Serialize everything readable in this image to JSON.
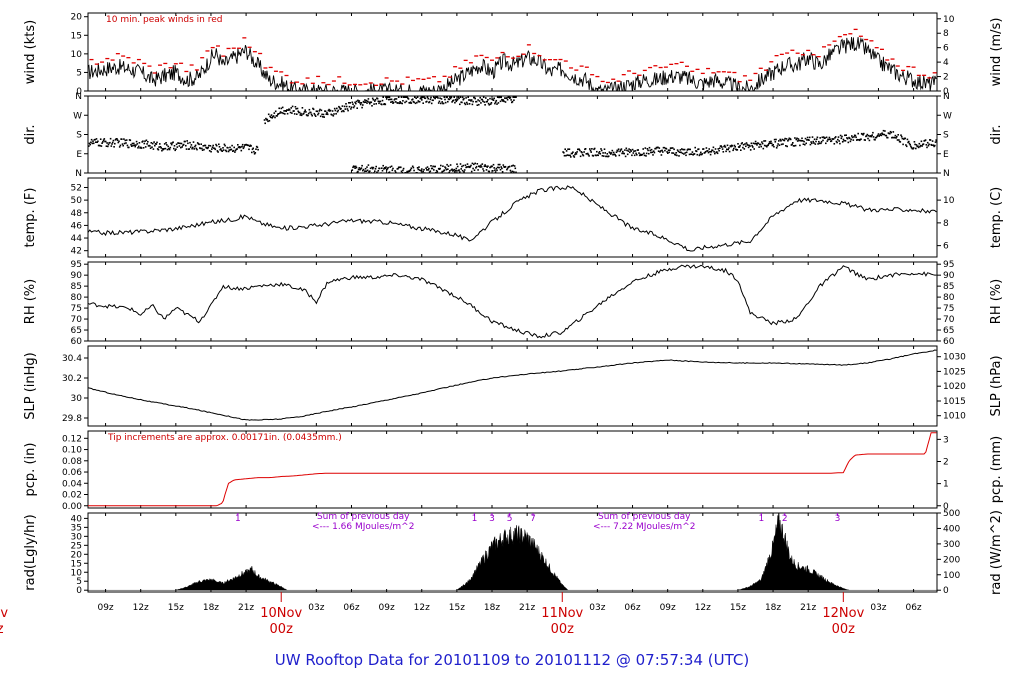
{
  "title": "UW Rooftop Data for 20101109  to  20101112 @ 07:57:34  (UTC)",
  "colors": {
    "trace": "#000000",
    "peak": "#e00000",
    "pcp": "#dd0000",
    "annot_red": "#cc0000",
    "annot_purple": "#9900cc",
    "title": "#1f1fcc"
  },
  "time_axis": {
    "start_hour": 7.5,
    "end_hour": 80,
    "ticks": [
      {
        "h": 9,
        "label": "09z"
      },
      {
        "h": 12,
        "label": "12z"
      },
      {
        "h": 15,
        "label": "15z"
      },
      {
        "h": 18,
        "label": "18z"
      },
      {
        "h": 21,
        "label": "21z"
      },
      {
        "h": 27,
        "label": "03z"
      },
      {
        "h": 30,
        "label": "06z"
      },
      {
        "h": 33,
        "label": "09z"
      },
      {
        "h": 36,
        "label": "12z"
      },
      {
        "h": 39,
        "label": "15z"
      },
      {
        "h": 42,
        "label": "18z"
      },
      {
        "h": 45,
        "label": "21z"
      },
      {
        "h": 51,
        "label": "03z"
      },
      {
        "h": 54,
        "label": "06z"
      },
      {
        "h": 57,
        "label": "09z"
      },
      {
        "h": 60,
        "label": "12z"
      },
      {
        "h": 63,
        "label": "15z"
      },
      {
        "h": 66,
        "label": "18z"
      },
      {
        "h": 69,
        "label": "21z"
      },
      {
        "h": 75,
        "label": "03z"
      },
      {
        "h": 78,
        "label": "06z"
      }
    ],
    "day_marks": [
      {
        "h": 0,
        "day": "ov",
        "z": "z"
      },
      {
        "h": 24,
        "day": "10Nov",
        "z": "00z"
      },
      {
        "h": 48,
        "day": "11Nov",
        "z": "00z"
      },
      {
        "h": 72,
        "day": "12Nov",
        "z": "00z"
      }
    ]
  },
  "chart_data": [
    {
      "id": "wind",
      "type": "line",
      "ylabel": "wind (kts)",
      "ylabel_right": "wind (m/s)",
      "ylim": [
        0,
        21
      ],
      "yticks": [
        0,
        5,
        10,
        15,
        20
      ],
      "right_axis": {
        "scale": 0.5144,
        "ticks": [
          0,
          2,
          4,
          6,
          8,
          10
        ],
        "labels": [
          "0",
          "2",
          "4",
          "6",
          "8",
          "10"
        ]
      },
      "annotation": "10 min. peak winds in red",
      "series": [
        {
          "x": [
            7.5,
            9,
            10,
            11,
            12,
            13,
            14,
            15,
            16,
            17,
            18,
            18.5,
            19,
            20,
            21,
            22,
            23,
            24,
            25,
            26,
            28,
            30,
            32,
            34,
            36,
            37,
            38,
            39,
            40,
            41,
            42,
            43,
            44,
            45,
            46,
            47,
            48,
            49,
            50,
            51,
            52,
            53,
            54,
            55,
            56,
            57,
            58,
            59,
            60,
            61,
            62,
            63,
            64,
            65,
            66,
            67,
            68,
            69,
            70,
            71,
            72,
            73,
            74,
            75,
            76,
            77,
            78,
            79,
            80
          ],
          "y": [
            5,
            6,
            6.5,
            6,
            5,
            3,
            4,
            5,
            3,
            4,
            9,
            10,
            7,
            9,
            11,
            7,
            3,
            2,
            0.5,
            0,
            0,
            0,
            0,
            0,
            0,
            0,
            1,
            3,
            5,
            7,
            5,
            8,
            7,
            9,
            8,
            5,
            6,
            4,
            3,
            0,
            0,
            1,
            2,
            3,
            3,
            4,
            4,
            3,
            2,
            3,
            2,
            1,
            0.5,
            3,
            5,
            7,
            7,
            9,
            7,
            10,
            12,
            13,
            11,
            8,
            6,
            4,
            3,
            2,
            2
          ]
        }
      ],
      "peak_note": "red marks above trace = 10-min peak winds"
    },
    {
      "id": "dir",
      "type": "scatter",
      "ylabel": "dir.",
      "ylabel_right": "dir.",
      "ylim": [
        0,
        360
      ],
      "yticks": [
        0,
        90,
        180,
        270,
        360
      ],
      "tick_labels": [
        "N",
        "E",
        "S",
        "W",
        "N"
      ],
      "series": [
        {
          "x": [
            7.5,
            10,
            12,
            14,
            16,
            18,
            20,
            21,
            22
          ],
          "y": [
            145,
            145,
            140,
            125,
            135,
            120,
            120,
            120,
            110
          ]
        },
        {
          "x": [
            22.5,
            23,
            24,
            26,
            28,
            30,
            32,
            35,
            38,
            41,
            44
          ],
          "y": [
            250,
            270,
            300,
            290,
            280,
            320,
            340,
            350,
            345,
            340,
            350
          ]
        },
        {
          "x": [
            30,
            33,
            36,
            40,
            44
          ],
          "y": [
            25,
            20,
            15,
            30,
            20
          ]
        },
        {
          "x": [
            48,
            50,
            52,
            54,
            56,
            58,
            60,
            62,
            64,
            66,
            68,
            70,
            72,
            74,
            76,
            78,
            80
          ],
          "y": [
            95,
            100,
            100,
            100,
            105,
            100,
            105,
            115,
            130,
            140,
            150,
            155,
            160,
            175,
            185,
            130,
            150
          ]
        }
      ]
    },
    {
      "id": "temp",
      "type": "line",
      "ylabel": "temp. (F)",
      "ylabel_right": "temp. (C)",
      "ylim": [
        41,
        53.5
      ],
      "yticks": [
        42,
        44,
        46,
        48,
        50,
        52
      ],
      "right_axis": {
        "ticks_in_left_units": [
          42.8,
          46.4,
          50.0
        ],
        "labels": [
          "6",
          "8",
          "10"
        ]
      },
      "series": [
        {
          "x": [
            7.5,
            9,
            12,
            15,
            18,
            20,
            21,
            22,
            23,
            24,
            27,
            30,
            33,
            36,
            39,
            40,
            42,
            44,
            46,
            48,
            49,
            50,
            52,
            54,
            56,
            58,
            59,
            60,
            62,
            64,
            66,
            68,
            70,
            72,
            74,
            76,
            78,
            80
          ],
          "y": [
            45,
            44.8,
            45,
            45.5,
            46.5,
            47,
            47.5,
            46.5,
            46,
            45.5,
            46,
            46.8,
            46.5,
            45.5,
            44.5,
            43.5,
            46.5,
            49.5,
            51.5,
            52,
            52,
            50.5,
            48,
            45.5,
            44.5,
            43,
            42,
            42.5,
            43,
            43.5,
            47.5,
            50,
            50,
            49.5,
            48.5,
            48.5,
            48.5,
            48
          ]
        }
      ]
    },
    {
      "id": "rh",
      "type": "line",
      "ylabel": "RH (%)",
      "ylabel_right": "RH (%)",
      "ylim": [
        60,
        96
      ],
      "yticks": [
        60,
        65,
        70,
        75,
        80,
        85,
        90,
        95
      ],
      "series": [
        {
          "x": [
            7.5,
            9,
            11,
            12,
            13,
            14,
            15,
            16,
            17,
            18,
            19,
            20,
            21,
            22,
            24,
            26,
            27,
            28,
            30,
            32,
            34,
            36,
            38,
            40,
            42,
            44,
            46,
            48,
            50,
            52,
            54,
            56,
            58,
            60,
            62,
            63,
            64,
            66,
            68,
            70,
            72,
            74,
            76,
            78,
            80
          ],
          "y": [
            77,
            76,
            75,
            72,
            76,
            70,
            75,
            72,
            69,
            76,
            85,
            84,
            84,
            85,
            86,
            83,
            78,
            87,
            89,
            89,
            90,
            88,
            83,
            77,
            69,
            65,
            62,
            64,
            72,
            80,
            87,
            91,
            94,
            94,
            92,
            88,
            73,
            68,
            70,
            85,
            94,
            88,
            90,
            91,
            90
          ]
        }
      ]
    },
    {
      "id": "slp",
      "type": "line",
      "ylabel": "SLP (inHg)",
      "ylabel_right": "SLP (hPa)",
      "ylim": [
        29.72,
        30.52
      ],
      "yticks": [
        29.8,
        30.0,
        30.2,
        30.4
      ],
      "right_axis": {
        "ticks_in_left_units": [
          29.823,
          29.97,
          30.118,
          30.266,
          30.413
        ],
        "labels": [
          "1010",
          "1015",
          "1020",
          "1025",
          "1030"
        ]
      },
      "series": [
        {
          "x": [
            7.5,
            10,
            13,
            16,
            19,
            21,
            22,
            24,
            26,
            28,
            30,
            33,
            36,
            39,
            42,
            45,
            48,
            51,
            54,
            57,
            60,
            63,
            66,
            69,
            72,
            74,
            76,
            78,
            80
          ],
          "y": [
            30.1,
            30.03,
            29.96,
            29.9,
            29.83,
            29.78,
            29.78,
            29.79,
            29.82,
            29.87,
            29.91,
            29.98,
            30.05,
            30.13,
            30.2,
            30.24,
            30.27,
            30.31,
            30.35,
            30.38,
            30.36,
            30.35,
            30.35,
            30.34,
            30.33,
            30.35,
            30.39,
            30.44,
            30.48
          ]
        }
      ]
    },
    {
      "id": "pcp",
      "type": "line",
      "ylabel": "pcp. (in)",
      "ylabel_right": "pcp. (mm)",
      "ylim": [
        -0.004,
        0.133
      ],
      "yticks": [
        0.0,
        0.02,
        0.04,
        0.06,
        0.08,
        0.1,
        0.12
      ],
      "tick_labels": [
        "0.00",
        "0.02",
        "0.04",
        "0.06",
        "0.08",
        "0.10",
        "0.12"
      ],
      "right_axis": {
        "ticks_in_left_units": [
          0,
          0.03937,
          0.07874,
          0.11811
        ],
        "labels": [
          "0",
          "1",
          "2",
          "3"
        ]
      },
      "annotation": "Tip increments are approx. 0.00171in. (0.0435mm.)",
      "series": [
        {
          "x": [
            7.5,
            18.5,
            19,
            19.2,
            19.5,
            20,
            21,
            22,
            23,
            24,
            25,
            26,
            27,
            28,
            30,
            36,
            42,
            48,
            54,
            60,
            66,
            71,
            72,
            72.5,
            73,
            74,
            76,
            78,
            79,
            79.5,
            80
          ],
          "y": [
            0,
            0,
            0.005,
            0.02,
            0.04,
            0.046,
            0.048,
            0.05,
            0.05,
            0.052,
            0.053,
            0.055,
            0.057,
            0.058,
            0.058,
            0.058,
            0.058,
            0.058,
            0.058,
            0.058,
            0.058,
            0.058,
            0.059,
            0.08,
            0.09,
            0.092,
            0.092,
            0.092,
            0.092,
            0.13,
            0.13
          ]
        }
      ]
    },
    {
      "id": "rad",
      "type": "area",
      "ylabel": "rad(Lgly/hr)",
      "ylabel_right": "rad (W/m^2)",
      "ylim": [
        -1,
        43
      ],
      "yticks": [
        0,
        5,
        10,
        15,
        20,
        25,
        30,
        35,
        40
      ],
      "right_axis": {
        "ticks_in_left_units": [
          0,
          8.6,
          17.2,
          25.8,
          34.4,
          43
        ],
        "labels": [
          "0",
          "100",
          "200",
          "300",
          "400",
          "500"
        ]
      },
      "series": [
        {
          "x": [
            15,
            16,
            17,
            18,
            19,
            20,
            20.5,
            21,
            21.5,
            22,
            23,
            24,
            24.5
          ],
          "y": [
            0,
            2,
            5,
            6,
            4,
            7,
            9,
            10,
            12,
            8,
            5,
            2,
            0
          ]
        },
        {
          "x": [
            39,
            40,
            41,
            42,
            43,
            44,
            45,
            46,
            47,
            48,
            48.5
          ],
          "y": [
            0,
            5,
            15,
            25,
            30,
            32,
            30,
            22,
            12,
            3,
            0
          ]
        },
        {
          "x": [
            63,
            64,
            65,
            66,
            66.5,
            67,
            67.5,
            68,
            69,
            70,
            71,
            72,
            72.5
          ],
          "y": [
            0,
            2,
            6,
            25,
            40,
            30,
            18,
            14,
            12,
            8,
            4,
            1,
            0
          ]
        }
      ],
      "marks": [
        {
          "h": 20.3,
          "label": "1"
        },
        {
          "h": 40.5,
          "label": "1"
        },
        {
          "h": 42,
          "label": "3"
        },
        {
          "h": 43.5,
          "label": "5"
        },
        {
          "h": 45.5,
          "label": "7"
        },
        {
          "h": 65,
          "label": "1"
        },
        {
          "h": 67,
          "label": "2"
        },
        {
          "h": 71.5,
          "label": "3"
        }
      ],
      "notes": [
        {
          "h": 31,
          "lines": [
            "Sum of previous day",
            "<--- 1.66 MJoules/m^2"
          ]
        },
        {
          "h": 55,
          "lines": [
            "Sum of previous day",
            "<--- 7.22 MJoules/m^2"
          ]
        }
      ]
    }
  ]
}
